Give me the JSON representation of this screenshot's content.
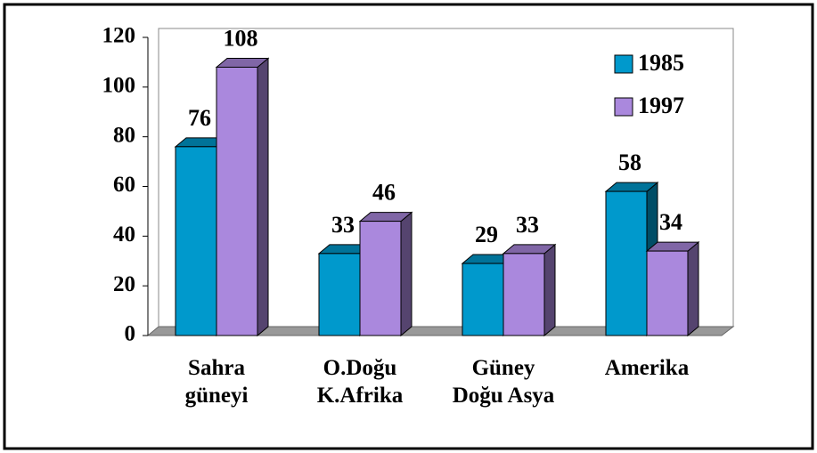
{
  "chart_data": {
    "type": "bar3d",
    "categories": [
      "Sahra\ngüneyi",
      "O.Doğu\nK.Afrika",
      "Güney\nDoğu Asya",
      "Amerika"
    ],
    "series": [
      {
        "name": "1985",
        "color": "#0099cc",
        "values": [
          76,
          33,
          29,
          58
        ]
      },
      {
        "name": "1997",
        "color": "#aa88dd",
        "values": [
          108,
          46,
          33,
          34
        ]
      }
    ],
    "ylim": [
      0,
      120
    ],
    "yticks": [
      0,
      20,
      40,
      60,
      80,
      100,
      120
    ],
    "legend": "top-right"
  }
}
